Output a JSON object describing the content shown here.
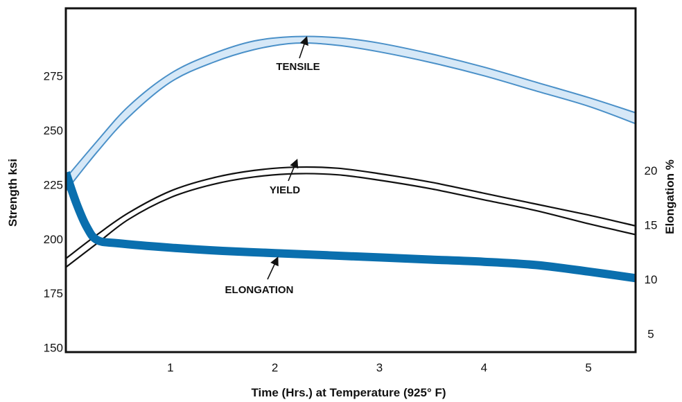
{
  "chart_data": {
    "type": "line",
    "xlabel": "Time (Hrs.) at Temperature (925° F)",
    "ylabel_left": "Strength ksi",
    "ylabel_right": "Elongation %",
    "xlim": [
      0,
      5.45
    ],
    "ylim_left": [
      148,
      306
    ],
    "ylim_right": [
      3.3,
      34.9
    ],
    "x_ticks": [
      "1",
      "2",
      "3",
      "4",
      "5"
    ],
    "y_left_ticks": [
      "150",
      "175",
      "200",
      "225",
      "250",
      "275"
    ],
    "y_right_ticks": [
      "5",
      "10",
      "15",
      "20"
    ],
    "grid": false,
    "colors": {
      "tensile": "#4a90c8",
      "tensile_fill": "#d6e8f7",
      "yield": "#111111",
      "elongation": "#0a6fae",
      "frame": "#111111"
    },
    "series": [
      {
        "key": "tensile",
        "axis": "left",
        "x": [
          0,
          0.3,
          0.6,
          1.0,
          1.4,
          1.8,
          2.2,
          2.6,
          3.0,
          3.5,
          4.0,
          4.5,
          5.0,
          5.45
        ],
        "upper": [
          228,
          245,
          261,
          276,
          285,
          291,
          293,
          292.5,
          290,
          285,
          279,
          272,
          265,
          258
        ],
        "lower": [
          222,
          240,
          256,
          272,
          281,
          287,
          290,
          289,
          286,
          281,
          275,
          268,
          261,
          253
        ]
      },
      {
        "key": "yield",
        "axis": "left",
        "x": [
          0,
          0.3,
          0.6,
          1.0,
          1.4,
          1.8,
          2.2,
          2.6,
          3.0,
          3.5,
          4.0,
          4.5,
          5.0,
          5.45
        ],
        "upper": [
          191,
          202,
          212,
          222,
          228,
          231.5,
          233,
          232.5,
          230,
          226,
          221,
          216,
          211,
          206
        ],
        "lower": [
          187,
          198,
          209,
          219,
          225,
          228.5,
          230,
          229.5,
          227,
          223,
          218,
          213,
          207,
          202
        ]
      },
      {
        "key": "elongation",
        "axis": "right",
        "x": [
          0,
          0.1,
          0.2,
          0.3,
          0.5,
          1.0,
          1.5,
          2.0,
          2.5,
          3.0,
          3.5,
          4.0,
          4.5,
          5.0,
          5.45
        ],
        "y": [
          19.8,
          17.0,
          14.8,
          13.6,
          13.3,
          12.9,
          12.6,
          12.4,
          12.2,
          12.0,
          11.8,
          11.6,
          11.3,
          10.7,
          10.1
        ]
      }
    ],
    "annotations": [
      {
        "text": "TENSILE",
        "series": "tensile"
      },
      {
        "text": "YIELD",
        "series": "yield"
      },
      {
        "text": "ELONGATION",
        "series": "elongation"
      }
    ]
  }
}
